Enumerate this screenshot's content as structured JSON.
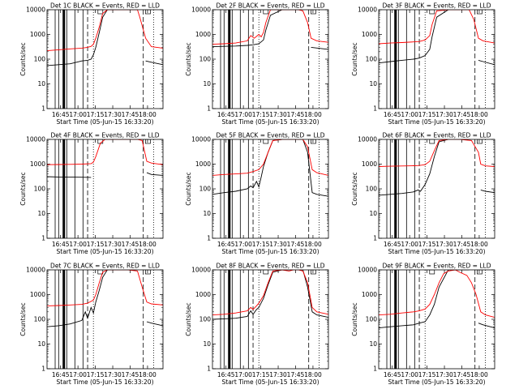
{
  "figure": {
    "background": "#ffffff",
    "colors": {
      "events": "#000000",
      "lld": "#ff0000",
      "markers": "#000000"
    }
  },
  "chart_data": [
    {
      "type": "line",
      "panel": 1,
      "title": "Det 1C BLACK = Events, RED = LLD",
      "xlabel": "Start Time (05-Jun-15 16:33:20)",
      "ylabel": "Counts/sec",
      "xticks": [
        "16:45",
        "17:00",
        "17:15",
        "17:30",
        "17:45",
        "18:00"
      ],
      "yticks": [
        "1",
        "10",
        "100",
        "1000",
        "10000"
      ],
      "yscale": "log",
      "ylim": [
        1,
        10000
      ],
      "xlim_minutes": [
        0,
        100
      ],
      "series": [
        {
          "name": "Events",
          "color": "#000000",
          "x": [
            0,
            10,
            20,
            30,
            35,
            38,
            40,
            42,
            45,
            48,
            52,
            62,
            68,
            72,
            78,
            80,
            85,
            90,
            100
          ],
          "y": [
            55,
            60,
            65,
            85,
            90,
            100,
            150,
            300,
            1200,
            5000,
            10000,
            10000,
            10000,
            10000,
            10000,
            null,
            85,
            75,
            60
          ]
        },
        {
          "name": "LLD",
          "color": "#ff0000",
          "x": [
            0,
            10,
            20,
            30,
            35,
            38,
            40,
            42,
            45,
            48,
            52,
            62,
            68,
            72,
            78,
            80,
            85,
            90,
            100
          ],
          "y": [
            220,
            240,
            260,
            280,
            300,
            330,
            400,
            700,
            2000,
            7000,
            10000,
            10000,
            10000,
            10000,
            10000,
            5000,
            700,
            320,
            280
          ]
        }
      ]
    },
    {
      "type": "line",
      "panel": 2,
      "title": "Det 2F BLACK = Events, RED = LLD",
      "xlabel": "Start Time (05-Jun-15 16:33:20)",
      "ylabel": "Counts/sec",
      "xticks": [
        "16:45",
        "17:00",
        "17:15",
        "17:30",
        "17:45",
        "18:00"
      ],
      "yticks": [
        "1",
        "10",
        "100",
        "1000",
        "10000"
      ],
      "yscale": "log",
      "ylim": [
        1,
        10000
      ],
      "xlim_minutes": [
        0,
        100
      ],
      "series": [
        {
          "name": "Events",
          "color": "#000000",
          "x": [
            0,
            10,
            20,
            30,
            35,
            40,
            44,
            46,
            50,
            60,
            66,
            70,
            74,
            78,
            85,
            100
          ],
          "y": [
            320,
            330,
            340,
            360,
            380,
            420,
            600,
            1500,
            6000,
            10000,
            10000,
            10000,
            10000,
            null,
            300,
            250
          ]
        },
        {
          "name": "LLD",
          "color": "#ff0000",
          "x": [
            0,
            10,
            20,
            30,
            33,
            36,
            40,
            42,
            44,
            46,
            50,
            60,
            70,
            74,
            78,
            82,
            85,
            90,
            100
          ],
          "y": [
            400,
            420,
            450,
            550,
            900,
            700,
            1000,
            800,
            1200,
            3000,
            10000,
            10000,
            10000,
            10000,
            9000,
            3000,
            700,
            550,
            480
          ]
        }
      ]
    },
    {
      "type": "line",
      "panel": 3,
      "title": "Det 3F BLACK = Events, RED = LLD",
      "xlabel": "Start Time (05-Jun-15 16:33:20)",
      "ylabel": "Counts/sec",
      "xticks": [
        "16:45",
        "17:00",
        "17:15",
        "17:30",
        "17:45",
        "18:00"
      ],
      "yticks": [
        "1",
        "10",
        "100",
        "1000",
        "10000"
      ],
      "yscale": "log",
      "ylim": [
        1,
        10000
      ],
      "xlim_minutes": [
        0,
        100
      ],
      "series": [
        {
          "name": "Events",
          "color": "#000000",
          "x": [
            0,
            10,
            20,
            30,
            35,
            40,
            44,
            46,
            50,
            60,
            70,
            78,
            82,
            86,
            90,
            100
          ],
          "y": [
            70,
            80,
            90,
            100,
            110,
            140,
            250,
            800,
            5000,
            10000,
            10000,
            10000,
            null,
            90,
            80,
            60
          ]
        },
        {
          "name": "LLD",
          "color": "#ff0000",
          "x": [
            0,
            10,
            20,
            30,
            35,
            40,
            44,
            46,
            50,
            60,
            70,
            78,
            82,
            86,
            90,
            100
          ],
          "y": [
            420,
            450,
            470,
            500,
            520,
            600,
            900,
            2500,
            9000,
            10000,
            10000,
            10000,
            4000,
            700,
            550,
            450
          ]
        }
      ]
    },
    {
      "type": "line",
      "panel": 4,
      "title": "Det 4F BLACK = Events, RED = LLD",
      "xlabel": "Start Time (05-Jun-15 16:33:20)",
      "ylabel": "Counts/sec",
      "xticks": [
        "16:45",
        "17:00",
        "17:15",
        "17:30",
        "17:45",
        "18:00"
      ],
      "yticks": [
        "1",
        "10",
        "100",
        "1000",
        "10000"
      ],
      "yscale": "log",
      "ylim": [
        1,
        10000
      ],
      "xlim_minutes": [
        0,
        100
      ],
      "series": [
        {
          "name": "Events",
          "color": "#000000",
          "x": [
            0,
            10,
            20,
            30,
            38,
            40,
            50,
            60,
            70,
            78,
            82,
            86,
            90,
            100
          ],
          "y": [
            310,
            300,
            300,
            295,
            290,
            null,
            null,
            null,
            null,
            null,
            null,
            450,
            380,
            350
          ]
        },
        {
          "name": "LLD",
          "color": "#ff0000",
          "x": [
            0,
            10,
            20,
            30,
            38,
            40,
            42,
            46,
            50,
            60,
            70,
            78,
            82,
            86,
            90,
            100
          ],
          "y": [
            950,
            960,
            980,
            1000,
            1050,
            1200,
            2000,
            7000,
            10000,
            10000,
            10000,
            10000,
            9000,
            1300,
            1100,
            950
          ]
        }
      ]
    },
    {
      "type": "line",
      "panel": 5,
      "title": "Det 5F BLACK = Events, RED = LLD",
      "xlabel": "Start Time (05-Jun-15 16:33:20)",
      "ylabel": "Counts/sec",
      "xticks": [
        "16:45",
        "17:00",
        "17:15",
        "17:30",
        "17:45",
        "18:00"
      ],
      "yticks": [
        "1",
        "10",
        "100",
        "1000",
        "10000"
      ],
      "yscale": "log",
      "ylim": [
        1,
        10000
      ],
      "xlim_minutes": [
        0,
        100
      ],
      "series": [
        {
          "name": "Events",
          "color": "#000000",
          "x": [
            0,
            10,
            20,
            30,
            33,
            35,
            38,
            40,
            42,
            44,
            48,
            52,
            60,
            70,
            78,
            82,
            86,
            90,
            100
          ],
          "y": [
            60,
            70,
            80,
            100,
            130,
            110,
            200,
            120,
            300,
            800,
            3000,
            9000,
            10000,
            10000,
            10000,
            3000,
            70,
            60,
            50
          ]
        },
        {
          "name": "LLD",
          "color": "#ff0000",
          "x": [
            0,
            10,
            20,
            30,
            35,
            40,
            44,
            48,
            52,
            60,
            70,
            78,
            82,
            86,
            90,
            100
          ],
          "y": [
            350,
            380,
            400,
            430,
            500,
            600,
            1000,
            3000,
            9000,
            10000,
            10000,
            10000,
            5000,
            600,
            450,
            350
          ]
        }
      ]
    },
    {
      "type": "line",
      "panel": 6,
      "title": "Det 6F BLACK = Events, RED = LLD",
      "xlabel": "Start Time (05-Jun-15 16:33:20)",
      "ylabel": "Counts/sec",
      "xticks": [
        "16:45",
        "17:00",
        "17:15",
        "17:30",
        "17:45",
        "18:00"
      ],
      "yticks": [
        "1",
        "10",
        "100",
        "1000",
        "10000"
      ],
      "yscale": "log",
      "ylim": [
        1,
        10000
      ],
      "xlim_minutes": [
        0,
        100
      ],
      "series": [
        {
          "name": "Events",
          "color": "#000000",
          "x": [
            0,
            10,
            20,
            30,
            34,
            36,
            40,
            44,
            48,
            52,
            60,
            70,
            80,
            86,
            88,
            92,
            100
          ],
          "y": [
            55,
            60,
            65,
            75,
            90,
            80,
            150,
            400,
            2000,
            8000,
            10000,
            10000,
            10000,
            null,
            90,
            80,
            70
          ]
        },
        {
          "name": "LLD",
          "color": "#ff0000",
          "x": [
            0,
            10,
            20,
            30,
            35,
            40,
            44,
            48,
            52,
            60,
            70,
            80,
            86,
            88,
            92,
            100
          ],
          "y": [
            800,
            820,
            840,
            860,
            880,
            950,
            1300,
            3500,
            9000,
            10000,
            10000,
            9000,
            3000,
            1000,
            850,
            800
          ]
        }
      ]
    },
    {
      "type": "line",
      "panel": 7,
      "title": "Det 7C BLACK = Events, RED = LLD",
      "xlabel": "Start Time (05-Jun-15 16:33:20)",
      "ylabel": "Counts/sec",
      "xticks": [
        "16:45",
        "17:00",
        "17:15",
        "17:30",
        "17:45",
        "18:00"
      ],
      "yticks": [
        "1",
        "10",
        "100",
        "1000",
        "10000"
      ],
      "yscale": "log",
      "ylim": [
        1,
        10000
      ],
      "xlim_minutes": [
        0,
        100
      ],
      "series": [
        {
          "name": "Events",
          "color": "#000000",
          "x": [
            0,
            10,
            20,
            30,
            33,
            35,
            38,
            40,
            42,
            45,
            48,
            52,
            60,
            70,
            78,
            82,
            86,
            90,
            100
          ],
          "y": [
            50,
            55,
            65,
            90,
            200,
            110,
            300,
            180,
            500,
            1500,
            5000,
            10000,
            10000,
            10000,
            10000,
            null,
            80,
            70,
            55
          ]
        },
        {
          "name": "LLD",
          "color": "#ff0000",
          "x": [
            0,
            10,
            20,
            30,
            35,
            40,
            42,
            45,
            48,
            52,
            60,
            70,
            78,
            82,
            86,
            90,
            100
          ],
          "y": [
            350,
            360,
            380,
            400,
            450,
            600,
            1000,
            3000,
            8000,
            10000,
            10000,
            10000,
            9000,
            2000,
            500,
            420,
            380
          ]
        }
      ]
    },
    {
      "type": "line",
      "panel": 8,
      "title": "Det 8F BLACK = Events, RED = LLD",
      "xlabel": "Start Time (05-Jun-15 16:33:20)",
      "ylabel": "Counts/sec",
      "xticks": [
        "16:45",
        "17:00",
        "17:15",
        "17:30",
        "17:45",
        "18:00"
      ],
      "yticks": [
        "1",
        "10",
        "100",
        "1000",
        "10000"
      ],
      "yscale": "log",
      "ylim": [
        1,
        10000
      ],
      "xlim_minutes": [
        0,
        100
      ],
      "series": [
        {
          "name": "Events",
          "color": "#000000",
          "x": [
            0,
            10,
            20,
            30,
            33,
            35,
            38,
            40,
            44,
            48,
            52,
            60,
            66,
            70,
            74,
            78,
            82,
            86,
            90,
            100
          ],
          "y": [
            100,
            105,
            110,
            130,
            220,
            160,
            250,
            300,
            700,
            2500,
            8000,
            10000,
            10000,
            10000,
            10000,
            10000,
            2000,
            200,
            150,
            120
          ]
        },
        {
          "name": "LLD",
          "color": "#ff0000",
          "x": [
            0,
            10,
            20,
            30,
            33,
            35,
            38,
            40,
            44,
            48,
            52,
            60,
            66,
            70,
            74,
            78,
            82,
            86,
            90,
            100
          ],
          "y": [
            150,
            160,
            180,
            220,
            300,
            250,
            350,
            450,
            900,
            3000,
            9000,
            10000,
            9000,
            10000,
            10000,
            9000,
            3000,
            300,
            200,
            160
          ]
        }
      ]
    },
    {
      "type": "line",
      "panel": 9,
      "title": "Det 9F BLACK = Events, RED = LLD",
      "xlabel": "Start Time (05-Jun-15 16:33:20)",
      "ylabel": "Counts/sec",
      "xticks": [
        "16:45",
        "17:00",
        "17:15",
        "17:30",
        "17:45",
        "18:00"
      ],
      "yticks": [
        "1",
        "10",
        "100",
        "1000",
        "10000"
      ],
      "yscale": "log",
      "ylim": [
        1,
        10000
      ],
      "xlim_minutes": [
        0,
        100
      ],
      "series": [
        {
          "name": "Events",
          "color": "#000000",
          "x": [
            0,
            10,
            20,
            30,
            35,
            40,
            44,
            48,
            52,
            60,
            70,
            78,
            84,
            86,
            90,
            100
          ],
          "y": [
            45,
            50,
            55,
            60,
            70,
            80,
            150,
            400,
            2000,
            10000,
            10000,
            10000,
            null,
            70,
            60,
            45
          ]
        },
        {
          "name": "LLD",
          "color": "#ff0000",
          "x": [
            0,
            10,
            20,
            30,
            35,
            40,
            44,
            48,
            52,
            56,
            60,
            66,
            70,
            76,
            80,
            84,
            88,
            92,
            100
          ],
          "y": [
            150,
            160,
            180,
            200,
            220,
            260,
            400,
            1000,
            3000,
            7000,
            9000,
            10000,
            8000,
            6000,
            3000,
            1000,
            200,
            150,
            120
          ]
        }
      ]
    }
  ],
  "markers": {
    "solid_minutes": [
      7,
      10,
      14,
      15,
      17,
      24,
      31
    ],
    "dashed_minutes": [
      35,
      83
    ],
    "dotted_minutes": [
      40,
      92
    ],
    "box_minutes": [
      46,
      87
    ]
  }
}
